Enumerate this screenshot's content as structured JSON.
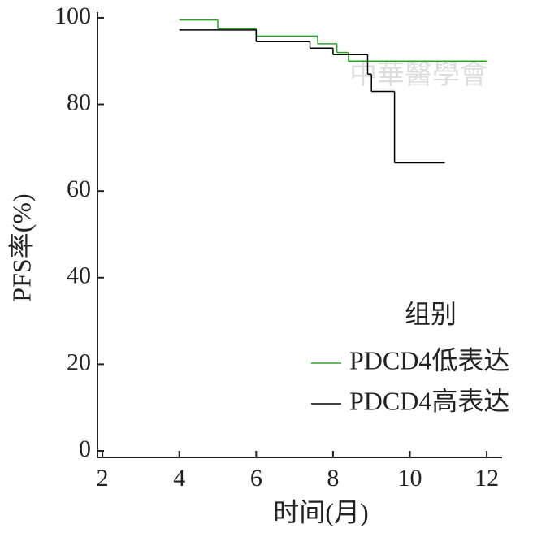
{
  "chart_data": {
    "type": "line",
    "step": "post",
    "x_label": "时间(月)",
    "y_label": "PFS率(%)",
    "watermark": "中華醫學會",
    "legend_title": "组别",
    "legend": "lower right",
    "xlim": [
      1.87,
      12.4
    ],
    "xticks": [
      2,
      4,
      6,
      8,
      10,
      12
    ],
    "ylim": [
      -1.5,
      101.3
    ],
    "yticks": [
      0,
      20,
      40,
      60,
      80,
      100
    ],
    "series": [
      {
        "name": "PDCD4低表达",
        "color": "#2ca02c",
        "x": [
          4,
          5,
          6,
          7.6,
          8.1,
          8.4,
          12
        ],
        "values": [
          99.5,
          97.5,
          95.8,
          94,
          92,
          90,
          90
        ]
      },
      {
        "name": "PDCD4高表达",
        "color": "#000000",
        "x": [
          4,
          6,
          7.4,
          8,
          8.9,
          9,
          9.6,
          10.9
        ],
        "values": [
          97.2,
          94.5,
          93,
          91.5,
          87,
          83,
          66.5,
          66.5
        ]
      }
    ]
  }
}
